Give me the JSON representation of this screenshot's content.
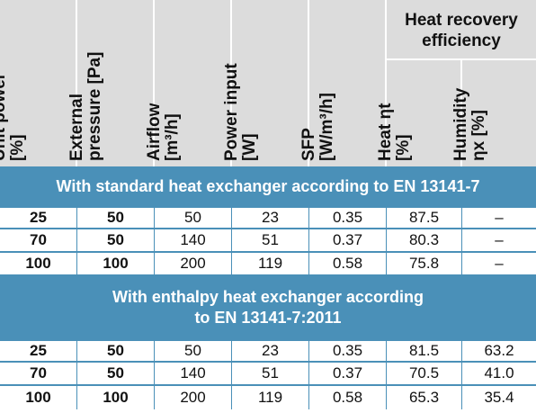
{
  "header": {
    "columns": [
      {
        "line1": "Unit power",
        "line2": "[%]"
      },
      {
        "line1": "External",
        "line2": "pressure [Pa]"
      },
      {
        "line1": "Airflow",
        "line2": "[m³/h]"
      },
      {
        "line1": "Power input",
        "line2": "[W]"
      },
      {
        "line1": "SFP",
        "line2": "[W/m³/h]"
      },
      {
        "line1": "Heat ηt",
        "line2": "[%]"
      },
      {
        "line1": "Humidity",
        "line2": "ηx [%]"
      }
    ],
    "group_line1": "Heat recovery",
    "group_line2": "efficiency"
  },
  "sections": [
    {
      "title_line1": "With standard heat exchanger according to EN 13141-7",
      "title_line2": "",
      "rows": [
        [
          "25",
          "50",
          "50",
          "23",
          "0.35",
          "87.5",
          "–"
        ],
        [
          "70",
          "50",
          "140",
          "51",
          "0.37",
          "80.3",
          "–"
        ],
        [
          "100",
          "100",
          "200",
          "119",
          "0.58",
          "75.8",
          "–"
        ]
      ]
    },
    {
      "title_line1": "With enthalpy heat exchanger according",
      "title_line2": "to EN 13141-7:2011",
      "rows": [
        [
          "25",
          "50",
          "50",
          "23",
          "0.35",
          "81.5",
          "63.2"
        ],
        [
          "70",
          "50",
          "140",
          "51",
          "0.37",
          "70.5",
          "41.0"
        ],
        [
          "100",
          "100",
          "200",
          "119",
          "0.58",
          "65.3",
          "35.4"
        ]
      ]
    }
  ],
  "colors": {
    "header_bg": "#dcdcdc",
    "section_bg": "#4a90b8",
    "grid_line": "#4a90b8"
  }
}
